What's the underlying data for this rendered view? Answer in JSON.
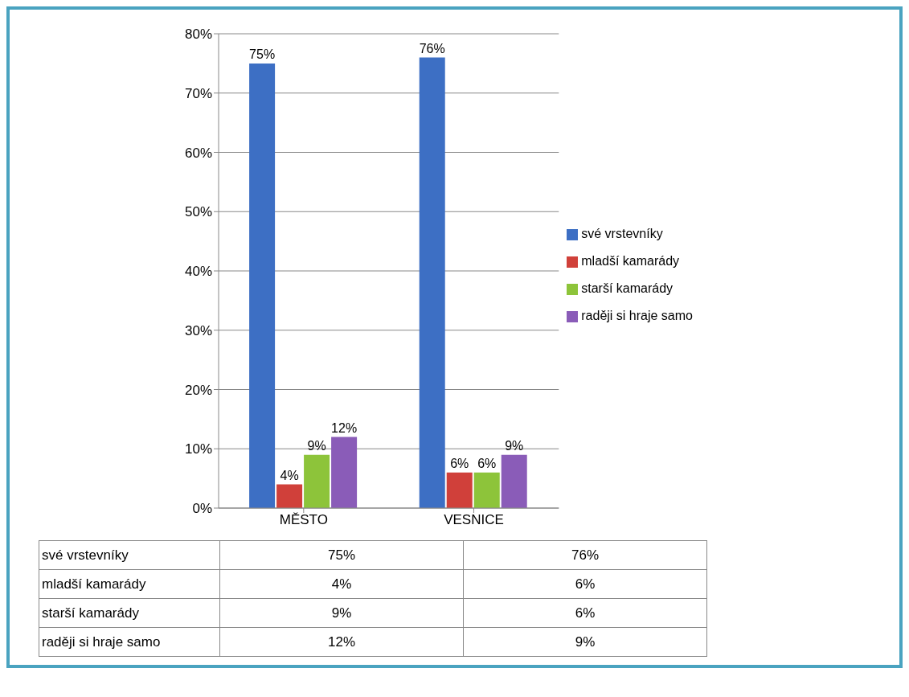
{
  "chart_data": {
    "type": "bar",
    "categories": [
      "MĚSTO",
      "VESNICE"
    ],
    "series": [
      {
        "name": "své vrstevníky",
        "color": "#3d6fc4",
        "values": [
          75,
          76
        ],
        "value_labels": [
          "75%",
          "76%"
        ]
      },
      {
        "name": "mladší kamarády",
        "color": "#d0403a",
        "values": [
          4,
          6
        ],
        "value_labels": [
          "4%",
          "6%"
        ]
      },
      {
        "name": "starší kamarády",
        "color": "#8dc43a",
        "values": [
          9,
          6
        ],
        "value_labels": [
          "9%",
          "6%"
        ]
      },
      {
        "name": "raději si hraje samo",
        "color": "#8a5cb8",
        "values": [
          12,
          9
        ],
        "value_labels": [
          "12%",
          "9%"
        ]
      }
    ],
    "ylim": [
      0,
      80
    ],
    "yticks": [
      {
        "value": 0,
        "label": "0%"
      },
      {
        "value": 10,
        "label": "10%"
      },
      {
        "value": 20,
        "label": "20%"
      },
      {
        "value": 30,
        "label": "30%"
      },
      {
        "value": 40,
        "label": "40%"
      },
      {
        "value": 50,
        "label": "50%"
      },
      {
        "value": 60,
        "label": "60%"
      },
      {
        "value": 70,
        "label": "70%"
      },
      {
        "value": 80,
        "label": "80%"
      }
    ],
    "grid": "y",
    "legend": "right"
  }
}
